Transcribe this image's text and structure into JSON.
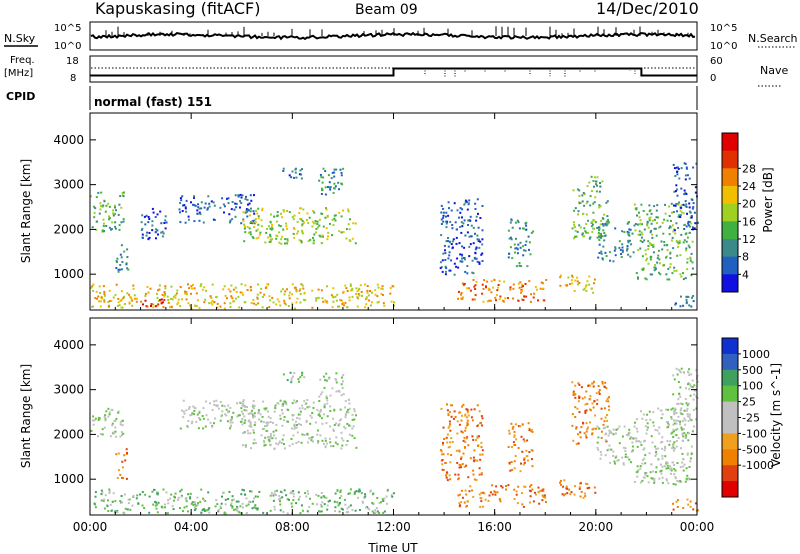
{
  "header": {
    "station": "Kapuskasing (fitACF)",
    "beam": "Beam 09",
    "date": "14/Dec/2010",
    "mode": "normal (fast) 151"
  },
  "top_labels": {
    "nsky": "N.Sky",
    "nsky_hi": "10^5",
    "nsky_lo": "10^0",
    "nsearch": "N.Search",
    "nsearch_hi": "10^5",
    "nsearch_lo": "10^0",
    "freq_line1": "Freq.",
    "freq_line2": "[MHz]",
    "freq_hi": "18",
    "freq_lo": "8",
    "nave": "Nave",
    "nave_hi": "60",
    "nave_lo": "0",
    "cpid": "CPID"
  },
  "chart_data": [
    {
      "type": "heatmap",
      "name": "power-panel",
      "xlabel": "",
      "ylabel": "Slant Range [km]",
      "x_ticks": [
        "00:00",
        "04:00",
        "08:00",
        "12:00",
        "16:00",
        "20:00",
        "00:00"
      ],
      "y_ticks": [
        "1000",
        "2000",
        "3000",
        "4000"
      ],
      "xlim_hours": [
        0,
        24
      ],
      "ylim_km": [
        200,
        4600
      ],
      "colorbar": {
        "label": "Power [dB]",
        "ticks": [
          "4",
          "8",
          "12",
          "16",
          "20",
          "24",
          "28"
        ],
        "colors": [
          "#1010e0",
          "#2060c0",
          "#3a8a8a",
          "#40b040",
          "#a0d020",
          "#f0c000",
          "#f08000",
          "#e03000",
          "#e00000"
        ]
      },
      "regions": [
        {
          "t0": 0.0,
          "t1": 1.3,
          "r0": 1950,
          "r1": 2850,
          "level": 3
        },
        {
          "t0": 1.0,
          "t1": 1.5,
          "r0": 1000,
          "r1": 1700,
          "level": 2
        },
        {
          "t0": 2.0,
          "t1": 3.0,
          "r0": 1800,
          "r1": 2500,
          "level": 1
        },
        {
          "t0": 3.5,
          "t1": 6.5,
          "r0": 2150,
          "r1": 2800,
          "level": 1
        },
        {
          "t0": 6.0,
          "t1": 10.5,
          "r0": 1700,
          "r1": 2500,
          "level": 4
        },
        {
          "t0": 7.5,
          "t1": 8.5,
          "r0": 3150,
          "r1": 3400,
          "level": 1
        },
        {
          "t0": 9.0,
          "t1": 10.0,
          "r0": 2800,
          "r1": 3400,
          "level": 2
        },
        {
          "t0": 0.0,
          "t1": 12.0,
          "r0": 250,
          "r1": 800,
          "level": 5
        },
        {
          "t0": 2.0,
          "t1": 3.0,
          "r0": 300,
          "r1": 500,
          "level": 8
        },
        {
          "t0": 14.5,
          "t1": 18.0,
          "r0": 400,
          "r1": 900,
          "level": 6
        },
        {
          "t0": 13.8,
          "t1": 15.5,
          "r0": 1000,
          "r1": 2700,
          "level": 1
        },
        {
          "t0": 16.5,
          "t1": 17.5,
          "r0": 1200,
          "r1": 2300,
          "level": 2
        },
        {
          "t0": 18.5,
          "t1": 20.0,
          "r0": 600,
          "r1": 1000,
          "level": 5
        },
        {
          "t0": 19.0,
          "t1": 20.5,
          "r0": 1800,
          "r1": 3200,
          "level": 3
        },
        {
          "t0": 20.0,
          "t1": 21.5,
          "r0": 1300,
          "r1": 2200,
          "level": 2
        },
        {
          "t0": 21.5,
          "t1": 23.8,
          "r0": 900,
          "r1": 2600,
          "level": 3
        },
        {
          "t0": 23.0,
          "t1": 24.0,
          "r0": 2000,
          "r1": 3500,
          "level": 1
        },
        {
          "t0": 23.0,
          "t1": 24.0,
          "r0": 300,
          "r1": 600,
          "level": 1
        }
      ]
    },
    {
      "type": "heatmap",
      "name": "velocity-panel",
      "xlabel": "Time UT",
      "ylabel": "Slant Range [km]",
      "x_ticks": [
        "00:00",
        "04:00",
        "08:00",
        "12:00",
        "16:00",
        "20:00",
        "00:00"
      ],
      "y_ticks": [
        "1000",
        "2000",
        "3000",
        "4000"
      ],
      "xlim_hours": [
        0,
        24
      ],
      "ylim_km": [
        200,
        4600
      ],
      "colorbar": {
        "label": "Velocity [m s^-1]",
        "ticks": [
          "1000",
          "500",
          "100",
          "25",
          "-25",
          "-100",
          "-500",
          "-1000"
        ],
        "colors": [
          "#1030d0",
          "#3060c0",
          "#40a060",
          "#60c040",
          "#c0c0c0",
          "#c0c0c0",
          "#f0a020",
          "#f08000",
          "#e04010",
          "#e00000"
        ]
      },
      "regions": [
        {
          "t0": 0.0,
          "t1": 1.3,
          "r0": 1950,
          "r1": 2600,
          "level": 4
        },
        {
          "t0": 1.0,
          "t1": 1.5,
          "r0": 1000,
          "r1": 1700,
          "level": 7
        },
        {
          "t0": 3.5,
          "t1": 6.5,
          "r0": 2150,
          "r1": 2800,
          "level": 4
        },
        {
          "t0": 6.0,
          "t1": 10.5,
          "r0": 1700,
          "r1": 2800,
          "level": 4
        },
        {
          "t0": 7.5,
          "t1": 8.5,
          "r0": 3150,
          "r1": 3400,
          "level": 3
        },
        {
          "t0": 9.0,
          "t1": 10.0,
          "r0": 2800,
          "r1": 3400,
          "level": 4
        },
        {
          "t0": 0.0,
          "t1": 12.0,
          "r0": 250,
          "r1": 800,
          "level": 3
        },
        {
          "t0": 14.5,
          "t1": 18.0,
          "r0": 400,
          "r1": 900,
          "level": 7
        },
        {
          "t0": 13.8,
          "t1": 15.5,
          "r0": 1000,
          "r1": 2700,
          "level": 7
        },
        {
          "t0": 16.5,
          "t1": 17.5,
          "r0": 1200,
          "r1": 2300,
          "level": 7
        },
        {
          "t0": 18.5,
          "t1": 20.0,
          "r0": 600,
          "r1": 1000,
          "level": 7
        },
        {
          "t0": 19.0,
          "t1": 20.5,
          "r0": 1800,
          "r1": 3200,
          "level": 7
        },
        {
          "t0": 20.0,
          "t1": 21.5,
          "r0": 1300,
          "r1": 2200,
          "level": 4
        },
        {
          "t0": 21.5,
          "t1": 23.8,
          "r0": 900,
          "r1": 2600,
          "level": 4
        },
        {
          "t0": 23.0,
          "t1": 24.0,
          "r0": 2000,
          "r1": 3500,
          "level": 4
        },
        {
          "t0": 23.0,
          "t1": 24.0,
          "r0": 300,
          "r1": 600,
          "level": 7
        }
      ]
    }
  ],
  "freq_series": {
    "hours": [
      0,
      12,
      12,
      21.8,
      21.8,
      24
    ],
    "mhz": [
      10.5,
      10.5,
      13.2,
      13.2,
      10.5,
      10.5
    ]
  }
}
